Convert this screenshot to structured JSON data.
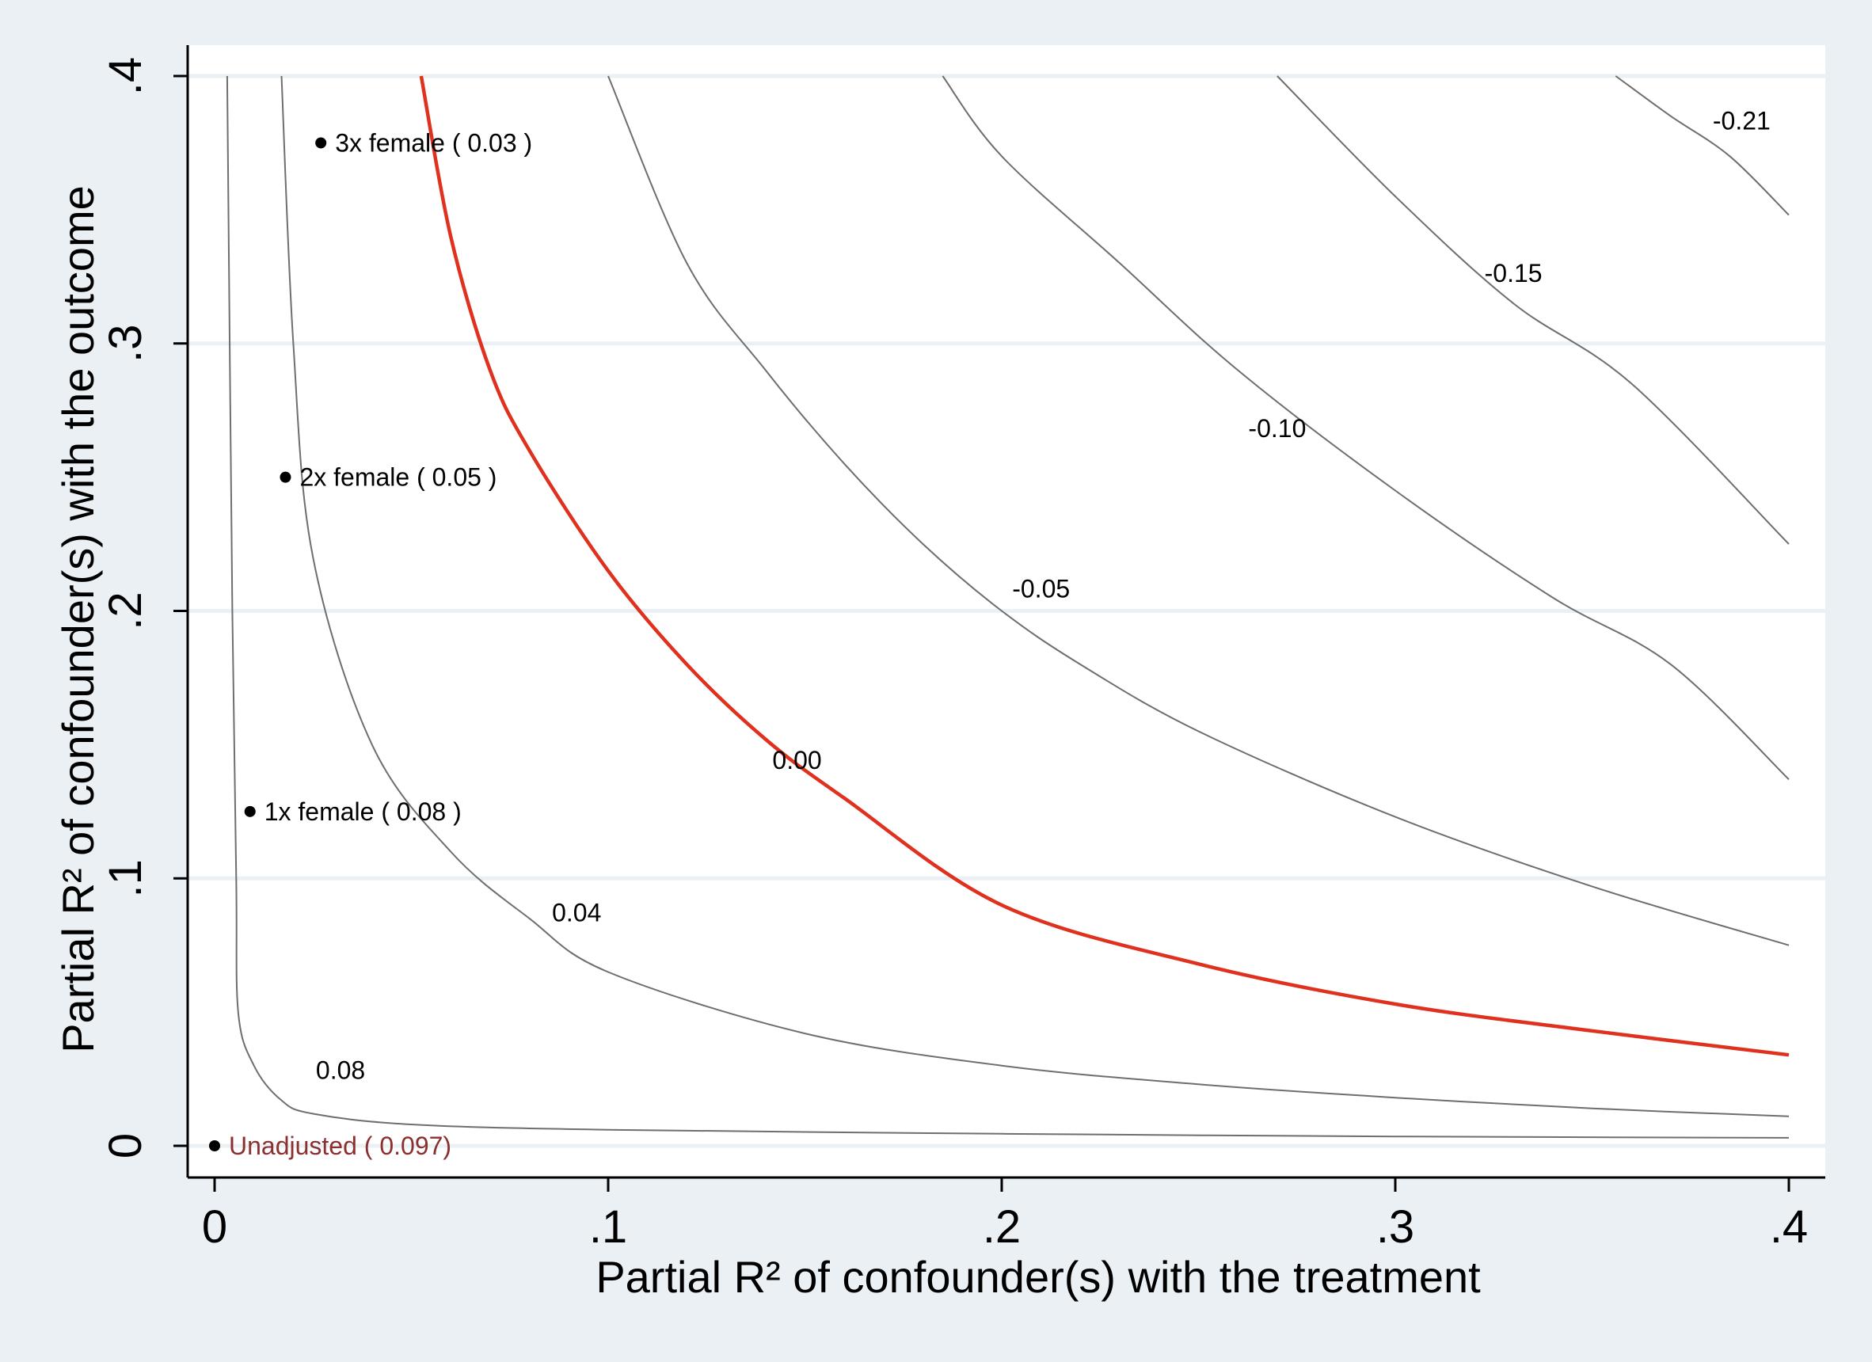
{
  "colors": {
    "page_background": "#eaf0f3",
    "plot_background": "#ffffff",
    "contour": "#6e6e6e",
    "threshold": "#e0301e",
    "unadjusted": "#8b2f2f",
    "gridline": "#eaf0f3"
  },
  "chart_data": {
    "type": "contour",
    "title": "",
    "xlabel": "Partial R² of confounder(s) with the treatment",
    "ylabel": "Partial R² of confounder(s) with the outcome",
    "xlim": [
      0,
      0.4
    ],
    "ylim": [
      0,
      0.4
    ],
    "x_ticks": [
      0,
      0.1,
      0.2,
      0.3,
      0.4
    ],
    "x_tick_labels": [
      "0",
      ".1",
      ".2",
      ".3",
      ".4"
    ],
    "y_ticks": [
      0,
      0.1,
      0.2,
      0.3,
      0.4
    ],
    "y_tick_labels": [
      "0",
      ".1",
      ".2",
      ".3",
      ".4"
    ],
    "grid": "horizontal",
    "contours": [
      {
        "label": "0.08",
        "threshold": false,
        "label_at": [
          0.032,
          0.025
        ],
        "points": [
          [
            0.0032,
            0.4
          ],
          [
            0.0045,
            0.2
          ],
          [
            0.0055,
            0.1
          ],
          [
            0.006,
            0.05
          ],
          [
            0.01,
            0.03
          ],
          [
            0.017,
            0.017
          ],
          [
            0.025,
            0.012
          ],
          [
            0.05,
            0.008
          ],
          [
            0.1,
            0.006
          ],
          [
            0.2,
            0.0045
          ],
          [
            0.3,
            0.0035
          ],
          [
            0.4,
            0.003
          ]
        ]
      },
      {
        "label": "0.04",
        "threshold": false,
        "label_at": [
          0.092,
          0.084
        ],
        "points": [
          [
            0.017,
            0.4
          ],
          [
            0.02,
            0.3
          ],
          [
            0.025,
            0.22
          ],
          [
            0.04,
            0.15
          ],
          [
            0.06,
            0.11
          ],
          [
            0.08,
            0.085
          ],
          [
            0.1,
            0.065
          ],
          [
            0.15,
            0.042
          ],
          [
            0.2,
            0.03
          ],
          [
            0.25,
            0.023
          ],
          [
            0.3,
            0.018
          ],
          [
            0.35,
            0.014
          ],
          [
            0.4,
            0.011
          ]
        ]
      },
      {
        "label": "0.00",
        "threshold": true,
        "label_at": [
          0.148,
          0.141
        ],
        "points": [
          [
            0.0525,
            0.4
          ],
          [
            0.06,
            0.34
          ],
          [
            0.07,
            0.29
          ],
          [
            0.08,
            0.26
          ],
          [
            0.1,
            0.215
          ],
          [
            0.12,
            0.18
          ],
          [
            0.14,
            0.152
          ],
          [
            0.16,
            0.13
          ],
          [
            0.2,
            0.09
          ],
          [
            0.25,
            0.068
          ],
          [
            0.3,
            0.053
          ],
          [
            0.35,
            0.043
          ],
          [
            0.4,
            0.034
          ]
        ]
      },
      {
        "label": "-0.05",
        "threshold": false,
        "label_at": [
          0.21,
          0.205
        ],
        "points": [
          [
            0.1,
            0.4
          ],
          [
            0.12,
            0.33
          ],
          [
            0.14,
            0.29
          ],
          [
            0.16,
            0.255
          ],
          [
            0.18,
            0.225
          ],
          [
            0.2,
            0.2
          ],
          [
            0.22,
            0.18
          ],
          [
            0.25,
            0.155
          ],
          [
            0.3,
            0.123
          ],
          [
            0.35,
            0.097
          ],
          [
            0.4,
            0.075
          ]
        ]
      },
      {
        "label": "-0.10",
        "threshold": false,
        "label_at": [
          0.27,
          0.265
        ],
        "points": [
          [
            0.185,
            0.4
          ],
          [
            0.2,
            0.37
          ],
          [
            0.23,
            0.33
          ],
          [
            0.26,
            0.29
          ],
          [
            0.3,
            0.245
          ],
          [
            0.34,
            0.205
          ],
          [
            0.37,
            0.18
          ],
          [
            0.4,
            0.137
          ]
        ]
      },
      {
        "label": "-0.15",
        "threshold": false,
        "label_at": [
          0.33,
          0.323
        ],
        "points": [
          [
            0.27,
            0.4
          ],
          [
            0.3,
            0.355
          ],
          [
            0.33,
            0.315
          ],
          [
            0.36,
            0.285
          ],
          [
            0.4,
            0.225
          ]
        ]
      },
      {
        "label": "-0.21",
        "threshold": false,
        "label_at": [
          0.388,
          0.38
        ],
        "points": [
          [
            0.356,
            0.4
          ],
          [
            0.37,
            0.385
          ],
          [
            0.385,
            0.37
          ],
          [
            0.4,
            0.348
          ]
        ]
      }
    ],
    "benchmarks": [
      {
        "label": "3x female ( 0.03 )",
        "x": 0.027,
        "y": 0.375
      },
      {
        "label": "2x female ( 0.05 )",
        "x": 0.018,
        "y": 0.25
      },
      {
        "label": "1x female ( 0.08 )",
        "x": 0.009,
        "y": 0.125
      }
    ],
    "unadjusted": {
      "label": "Unadjusted ( 0.097)",
      "x": 0.0,
      "y": 0.0
    }
  }
}
